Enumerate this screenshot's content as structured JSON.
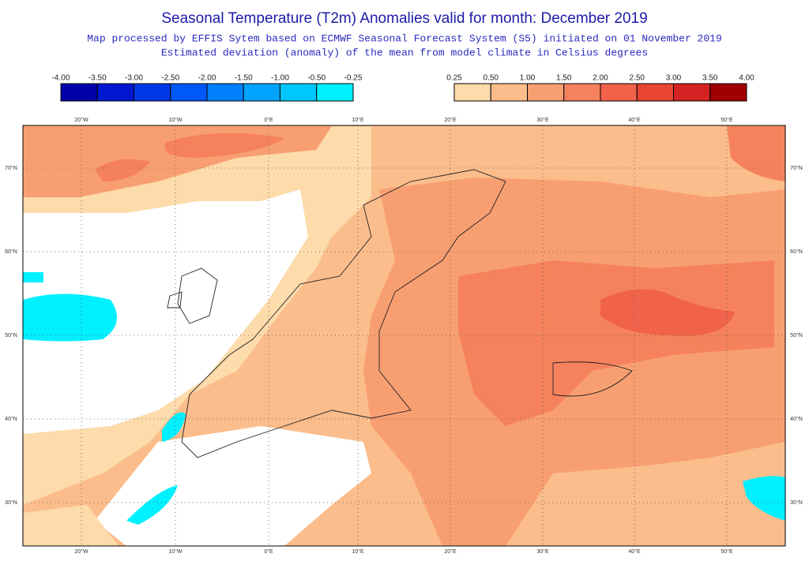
{
  "header": {
    "title": "Seasonal Temperature (T2m) Anomalies valid for month: December 2019",
    "subtitle_1": "Map processed by EFFIS Sytem based on ECMWF Seasonal Forecast System (S5) initiated on 01 November 2019",
    "subtitle_2": "Estimated deviation (anomaly) of the mean from model climate in Celsius degrees"
  },
  "legend_negative": {
    "labels": [
      "-4.00",
      "-3.50",
      "-3.00",
      "-2.50",
      "-2.00",
      "-1.50",
      "-1.00",
      "-0.50",
      "-0.25"
    ],
    "colors": [
      "#0000a8",
      "#0018d0",
      "#0038e8",
      "#0058f8",
      "#0080ff",
      "#00a4ff",
      "#00c8ff",
      "#00f0ff"
    ]
  },
  "legend_positive": {
    "labels": [
      "0.25",
      "0.50",
      "1.00",
      "1.50",
      "2.00",
      "2.50",
      "3.00",
      "3.50",
      "4.00"
    ],
    "colors": [
      "#fddbab",
      "#fbbd8c",
      "#f89f72",
      "#f5825c",
      "#f0624a",
      "#e84434",
      "#d42222",
      "#a00000"
    ]
  },
  "map": {
    "lon_labels": [
      "20°W",
      "10°W",
      "0°E",
      "10°E",
      "20°E",
      "30°E",
      "40°E",
      "50°E"
    ],
    "lat_labels": [
      "70°N",
      "60°N",
      "50°N",
      "40°N",
      "30°N"
    ]
  }
}
